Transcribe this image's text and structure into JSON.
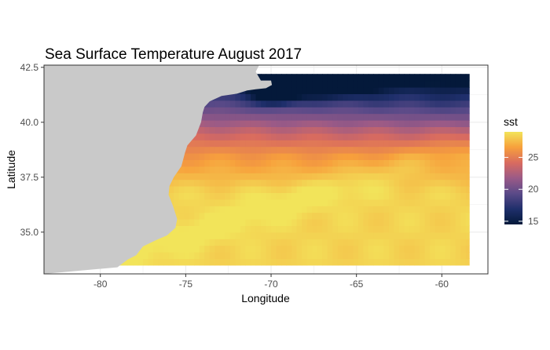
{
  "chart_data": {
    "type": "heatmap",
    "title": "Sea Surface Temperature August 2017",
    "xlabel": "Longitude",
    "ylabel": "Latitude",
    "xlim": [
      -83.3,
      -57.3
    ],
    "ylim": [
      33.1,
      42.6
    ],
    "x_ticks": [
      -80,
      -75,
      -70,
      -65,
      -60
    ],
    "x_tick_labels": [
      "-80",
      "-75",
      "-70",
      "-65",
      "-60"
    ],
    "y_ticks": [
      35.0,
      37.5,
      40.0,
      42.5
    ],
    "y_tick_labels": [
      "35.0",
      "37.5",
      "40.0",
      "42.5"
    ],
    "grid": true,
    "data_extent": {
      "lon": [
        -79.0,
        -58.4
      ],
      "lat": [
        33.5,
        42.2
      ]
    },
    "legend": {
      "title": "sst",
      "position": "right",
      "min": 14.5,
      "max": 29.0,
      "ticks": [
        15,
        20,
        25
      ],
      "tick_labels": [
        "15",
        "20",
        "25"
      ],
      "colors": [
        "#04193a",
        "#1f2f6b",
        "#5a4a88",
        "#9a5a87",
        "#d96b5f",
        "#f7a03c",
        "#f2e45a"
      ]
    },
    "colors": {
      "land": "#c9c9c9",
      "grid": "#ebebeb",
      "panel_border": "#333333"
    }
  }
}
